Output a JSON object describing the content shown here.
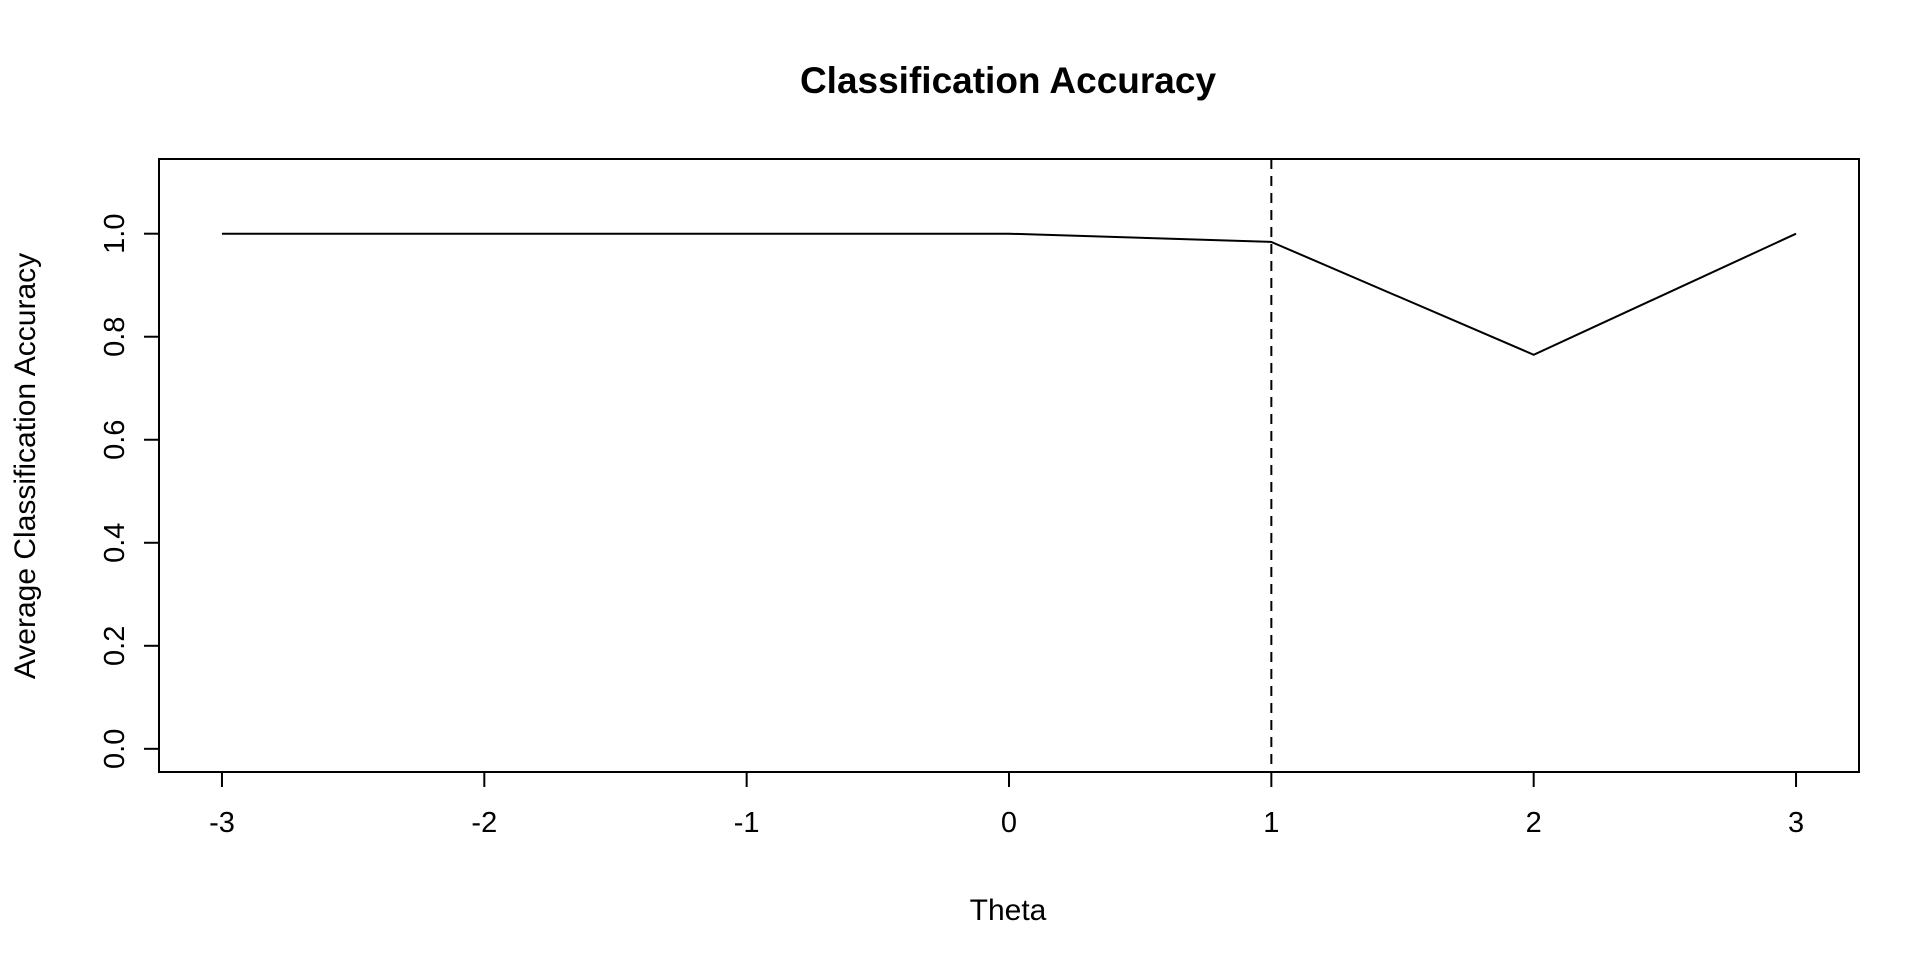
{
  "chart_data": {
    "type": "line",
    "title": "Classification Accuracy",
    "xlabel": "Theta",
    "ylabel": "Average Classification Accuracy",
    "x": [
      -3,
      -2,
      -1,
      0,
      1,
      2,
      3
    ],
    "series": [
      {
        "values": [
          1.0,
          1.0,
          1.0,
          1.0,
          0.984,
          0.765,
          1.0
        ]
      }
    ],
    "xlim": [
      -3.24,
      3.24
    ],
    "ylim": [
      -0.045,
      1.145
    ],
    "x_ticks": [
      -3,
      -2,
      -1,
      0,
      1,
      2,
      3
    ],
    "x_tick_labels": [
      "-3",
      "-2",
      "-1",
      "0",
      "1",
      "2",
      "3"
    ],
    "y_ticks": [
      0.0,
      0.2,
      0.4,
      0.6,
      0.8,
      1.0
    ],
    "y_tick_labels": [
      "0.0",
      "0.2",
      "0.4",
      "0.6",
      "0.8",
      "1.0"
    ],
    "reference_line": {
      "orientation": "vertical",
      "x": 1,
      "style": "dashed",
      "color": "#000000"
    },
    "line_color": "#000000",
    "grid": false,
    "legend": false
  }
}
